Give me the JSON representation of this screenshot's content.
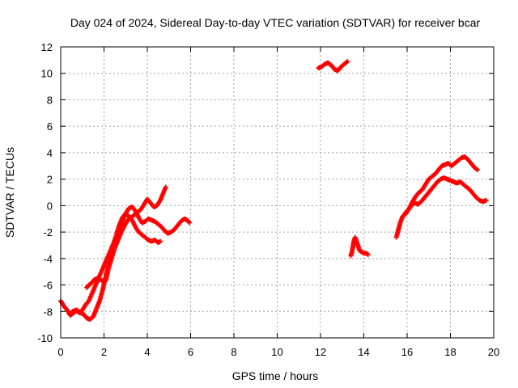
{
  "chart_data": {
    "type": "scatter",
    "title": "Day 024 of 2024, Sidereal Day-to-day VTEC variation (SDTVAR) for receiver bcar",
    "xlabel": "GPS time / hours",
    "ylabel": "SDTVAR / TECUs",
    "xlim": [
      0,
      20
    ],
    "ylim": [
      -10,
      12
    ],
    "xticks": [
      "0",
      "2",
      "4",
      "6",
      "8",
      "10",
      "12",
      "14",
      "16",
      "18",
      "20"
    ],
    "yticks": [
      "-10",
      "-8",
      "-6",
      "-4",
      "-2",
      "0",
      "2",
      "4",
      "6",
      "8",
      "10",
      "12"
    ],
    "grid": true,
    "marker": "plus",
    "color": "#ff0000",
    "series": [
      {
        "name": "arc-1",
        "x": [
          0.0,
          0.15,
          0.3,
          0.45,
          0.6,
          0.75,
          0.9,
          1.05,
          1.2,
          1.35,
          1.5,
          1.65,
          1.8,
          1.95,
          2.1,
          2.25,
          2.4,
          2.55,
          2.7,
          2.85,
          3.0,
          3.15,
          3.3,
          3.45,
          3.6,
          3.75,
          3.9,
          4.05,
          4.2,
          4.35,
          4.5,
          4.6
        ],
        "y": [
          -7.2,
          -7.6,
          -7.9,
          -8.3,
          -8.1,
          -7.9,
          -8.1,
          -8.2,
          -8.5,
          -8.6,
          -8.4,
          -7.8,
          -7.2,
          -6.3,
          -5.2,
          -4.1,
          -3.1,
          -2.3,
          -1.5,
          -0.9,
          -0.6,
          -0.8,
          -1.1,
          -1.6,
          -2.0,
          -2.2,
          -2.4,
          -2.6,
          -2.7,
          -2.6,
          -2.8,
          -2.7
        ]
      },
      {
        "name": "arc-2",
        "x": [
          1.2,
          1.3,
          1.4,
          1.55,
          1.7,
          1.85,
          2.0,
          2.1,
          2.2,
          2.35,
          2.5,
          2.65,
          2.8,
          2.95,
          3.1,
          3.25,
          3.4,
          3.55,
          3.7,
          3.85,
          4.0,
          4.15,
          4.3,
          4.45,
          4.6,
          4.75,
          4.85
        ],
        "y": [
          -6.2,
          -6.0,
          -5.9,
          -5.6,
          -5.5,
          -5.6,
          -5.8,
          -5.6,
          -4.8,
          -4.0,
          -3.2,
          -2.6,
          -2.0,
          -1.5,
          -1.1,
          -0.9,
          -0.7,
          -0.5,
          -0.3,
          0.1,
          0.5,
          0.2,
          -0.1,
          0.0,
          0.4,
          1.0,
          1.4
        ]
      },
      {
        "name": "arc-3",
        "x": [
          0.4,
          0.55,
          0.7,
          0.85,
          1.0,
          1.15,
          1.3,
          2.4,
          2.55,
          2.7,
          2.85,
          3.0,
          3.15,
          3.3,
          3.45,
          3.6,
          3.75,
          3.9,
          4.05,
          4.2,
          4.35,
          4.5,
          4.65,
          4.8,
          4.95,
          5.1,
          5.25,
          5.4,
          5.55,
          5.7,
          5.85,
          5.95
        ],
        "y": [
          -8.2,
          -8.0,
          -7.9,
          -8.1,
          -7.9,
          -7.5,
          -7.2,
          -3.0,
          -2.6,
          -2.0,
          -1.2,
          -0.6,
          -0.2,
          -0.1,
          -0.4,
          -0.9,
          -1.3,
          -1.2,
          -1.0,
          -1.1,
          -1.2,
          -1.4,
          -1.6,
          -1.9,
          -2.1,
          -2.0,
          -1.8,
          -1.5,
          -1.2,
          -1.0,
          -1.1,
          -1.3
        ]
      },
      {
        "name": "arc-4",
        "x": [
          11.9,
          12.05,
          12.2,
          12.35,
          12.5,
          12.65,
          12.8,
          12.95,
          13.1,
          13.25
        ],
        "y": [
          10.4,
          10.5,
          10.7,
          10.8,
          10.6,
          10.3,
          10.2,
          10.5,
          10.7,
          10.9
        ]
      },
      {
        "name": "arc-5",
        "x": [
          13.4,
          13.45,
          13.5,
          13.55,
          13.6,
          13.65,
          13.7,
          13.75,
          13.8,
          13.9,
          14.0,
          14.1,
          14.2
        ],
        "y": [
          -3.8,
          -3.5,
          -3.1,
          -2.6,
          -2.4,
          -2.6,
          -2.9,
          -3.1,
          -3.4,
          -3.5,
          -3.6,
          -3.6,
          -3.7
        ]
      },
      {
        "name": "arc-6",
        "x": [
          15.5,
          15.6,
          15.7,
          15.8,
          15.95,
          16.1,
          16.25,
          16.4,
          16.55,
          16.7,
          16.85,
          17.0,
          17.15,
          17.3,
          17.45,
          17.6,
          17.75,
          17.9,
          18.05,
          18.2,
          18.35,
          18.5,
          18.65,
          18.8,
          18.95,
          19.1,
          19.25
        ],
        "y": [
          -2.4,
          -1.8,
          -1.2,
          -0.8,
          -0.6,
          -0.2,
          0.3,
          0.7,
          1.0,
          1.2,
          1.6,
          2.0,
          2.2,
          2.4,
          2.7,
          3.0,
          3.1,
          3.2,
          3.0,
          3.2,
          3.4,
          3.6,
          3.7,
          3.5,
          3.2,
          2.9,
          2.7
        ]
      },
      {
        "name": "arc-7",
        "x": [
          15.9,
          16.05,
          16.2,
          16.35,
          16.5,
          16.65,
          16.8,
          16.95,
          17.1,
          17.25,
          17.4,
          17.55,
          17.7,
          17.85,
          18.0,
          18.15,
          18.3,
          18.45,
          18.6,
          18.75,
          18.9,
          19.05,
          19.2,
          19.35,
          19.5,
          19.65
        ],
        "y": [
          -0.6,
          -0.3,
          0.0,
          0.2,
          0.1,
          0.3,
          0.6,
          0.9,
          1.2,
          1.5,
          1.8,
          2.0,
          2.1,
          2.0,
          1.9,
          1.8,
          1.7,
          1.8,
          1.6,
          1.4,
          1.2,
          0.9,
          0.6,
          0.4,
          0.3,
          0.4
        ]
      }
    ]
  }
}
